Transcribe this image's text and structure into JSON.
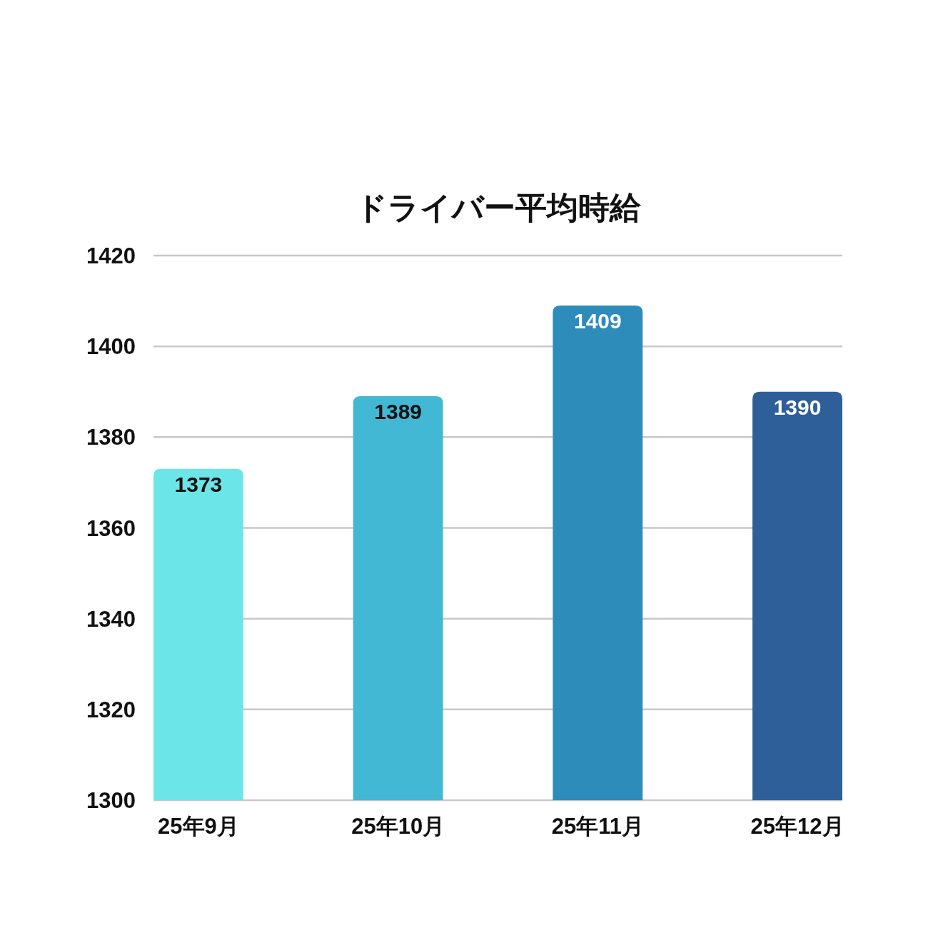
{
  "chart_data": {
    "type": "bar",
    "title": "ドライバー平均時給",
    "categories": [
      "25年9月",
      "25年10月",
      "25年11月",
      "25年12月"
    ],
    "values": [
      1373,
      1389,
      1409,
      1390
    ],
    "colors": [
      "#6be5e8",
      "#42b8d5",
      "#2e8cba",
      "#2e5f98"
    ],
    "ylim": [
      1300,
      1420
    ],
    "yticks": [
      1300,
      1320,
      1340,
      1360,
      1380,
      1400,
      1420
    ],
    "grid": "y",
    "data_labels": true
  }
}
